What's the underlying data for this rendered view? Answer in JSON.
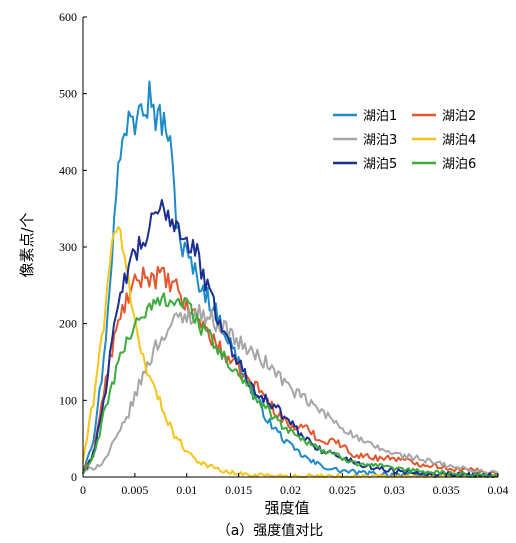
{
  "chart_data": {
    "type": "line",
    "caption": "（a）强度值对比",
    "xlabel": "强度值",
    "ylabel": "像素点/个",
    "xlim": [
      0,
      0.04
    ],
    "ylim": [
      0,
      600
    ],
    "xticks": [
      0,
      0.005,
      0.01,
      0.015,
      0.02,
      0.025,
      0.03,
      0.035,
      0.04
    ],
    "xtick_labels": [
      "0",
      "0.005",
      "0.01",
      "0.015",
      "0.02",
      "0.025",
      "0.03",
      "0.035",
      "0.04"
    ],
    "yticks": [
      0,
      100,
      200,
      300,
      400,
      500,
      600
    ],
    "ytick_labels": [
      "0",
      "100",
      "200",
      "300",
      "400",
      "500",
      "600"
    ],
    "grid": false,
    "legend_position": "upper-right",
    "series": [
      {
        "name": "湖泊1",
        "color": "#1f8ac8",
        "x": [
          0,
          0.001,
          0.002,
          0.003,
          0.0035,
          0.004,
          0.0045,
          0.005,
          0.0055,
          0.006,
          0.0065,
          0.007,
          0.0075,
          0.008,
          0.0085,
          0.009,
          0.0095,
          0.01,
          0.011,
          0.012,
          0.013,
          0.014,
          0.015,
          0.016,
          0.017,
          0.018,
          0.019,
          0.02,
          0.021,
          0.022,
          0.023,
          0.024,
          0.025,
          0.027,
          0.03,
          0.035,
          0.04
        ],
        "values": [
          10,
          50,
          150,
          330,
          415,
          445,
          490,
          465,
          520,
          480,
          505,
          470,
          465,
          460,
          420,
          340,
          300,
          290,
          260,
          235,
          210,
          180,
          150,
          120,
          95,
          70,
          55,
          40,
          30,
          20,
          15,
          10,
          8,
          5,
          3,
          2,
          1
        ]
      },
      {
        "name": "湖泊2",
        "color": "#e4572e",
        "x": [
          0,
          0.001,
          0.002,
          0.003,
          0.004,
          0.005,
          0.006,
          0.007,
          0.0075,
          0.008,
          0.009,
          0.01,
          0.011,
          0.012,
          0.013,
          0.014,
          0.015,
          0.016,
          0.017,
          0.018,
          0.019,
          0.02,
          0.021,
          0.022,
          0.023,
          0.024,
          0.025,
          0.026,
          0.028,
          0.03,
          0.032,
          0.034,
          0.036,
          0.038,
          0.04
        ],
        "values": [
          5,
          30,
          110,
          180,
          225,
          250,
          265,
          260,
          265,
          255,
          245,
          220,
          210,
          190,
          170,
          155,
          140,
          125,
          115,
          95,
          80,
          65,
          65,
          60,
          45,
          50,
          40,
          30,
          25,
          25,
          18,
          15,
          10,
          8,
          5
        ]
      },
      {
        "name": "湖泊3",
        "color": "#a6a6a6",
        "x": [
          0,
          0.002,
          0.004,
          0.005,
          0.006,
          0.007,
          0.008,
          0.009,
          0.01,
          0.011,
          0.012,
          0.013,
          0.014,
          0.015,
          0.016,
          0.017,
          0.018,
          0.019,
          0.02,
          0.021,
          0.022,
          0.023,
          0.024,
          0.025,
          0.026,
          0.027,
          0.028,
          0.029,
          0.03,
          0.032,
          0.034,
          0.036,
          0.038,
          0.04
        ],
        "values": [
          5,
          20,
          70,
          105,
          140,
          170,
          190,
          205,
          210,
          215,
          210,
          200,
          190,
          175,
          165,
          155,
          145,
          130,
          115,
          105,
          95,
          85,
          75,
          65,
          55,
          45,
          40,
          35,
          30,
          25,
          18,
          12,
          8,
          5
        ]
      },
      {
        "name": "湖泊4",
        "color": "#f5c518",
        "x": [
          0,
          0.001,
          0.002,
          0.0025,
          0.003,
          0.0035,
          0.004,
          0.0045,
          0.005,
          0.0055,
          0.006,
          0.007,
          0.008,
          0.009,
          0.01,
          0.011,
          0.012,
          0.013,
          0.014,
          0.015,
          0.016,
          0.018,
          0.02,
          0.025,
          0.03,
          0.04
        ],
        "values": [
          20,
          100,
          200,
          280,
          305,
          320,
          300,
          240,
          200,
          170,
          150,
          110,
          80,
          50,
          35,
          22,
          15,
          10,
          6,
          4,
          3,
          2,
          1,
          1,
          0,
          0
        ]
      },
      {
        "name": "湖泊5",
        "color": "#1c2f8f",
        "x": [
          0,
          0.001,
          0.002,
          0.003,
          0.004,
          0.005,
          0.006,
          0.007,
          0.0075,
          0.008,
          0.0085,
          0.009,
          0.0095,
          0.01,
          0.011,
          0.012,
          0.013,
          0.014,
          0.015,
          0.016,
          0.017,
          0.018,
          0.019,
          0.02,
          0.021,
          0.022,
          0.023,
          0.024,
          0.025,
          0.027,
          0.03,
          0.035,
          0.04
        ],
        "values": [
          5,
          30,
          100,
          190,
          260,
          290,
          310,
          340,
          345,
          350,
          340,
          330,
          320,
          310,
          290,
          245,
          210,
          175,
          150,
          125,
          110,
          95,
          85,
          70,
          55,
          45,
          35,
          30,
          25,
          15,
          8,
          4,
          2
        ]
      },
      {
        "name": "湖泊6",
        "color": "#3caa3c",
        "x": [
          0,
          0.001,
          0.002,
          0.003,
          0.004,
          0.005,
          0.006,
          0.007,
          0.008,
          0.009,
          0.01,
          0.011,
          0.012,
          0.013,
          0.014,
          0.015,
          0.016,
          0.017,
          0.018,
          0.019,
          0.02,
          0.021,
          0.022,
          0.023,
          0.024,
          0.025,
          0.026,
          0.028,
          0.03,
          0.032,
          0.034,
          0.036,
          0.038,
          0.04
        ],
        "values": [
          5,
          25,
          80,
          130,
          170,
          200,
          215,
          225,
          235,
          230,
          225,
          205,
          185,
          165,
          150,
          130,
          115,
          100,
          85,
          70,
          60,
          50,
          45,
          35,
          30,
          25,
          20,
          15,
          10,
          8,
          6,
          4,
          3,
          2
        ]
      }
    ]
  }
}
